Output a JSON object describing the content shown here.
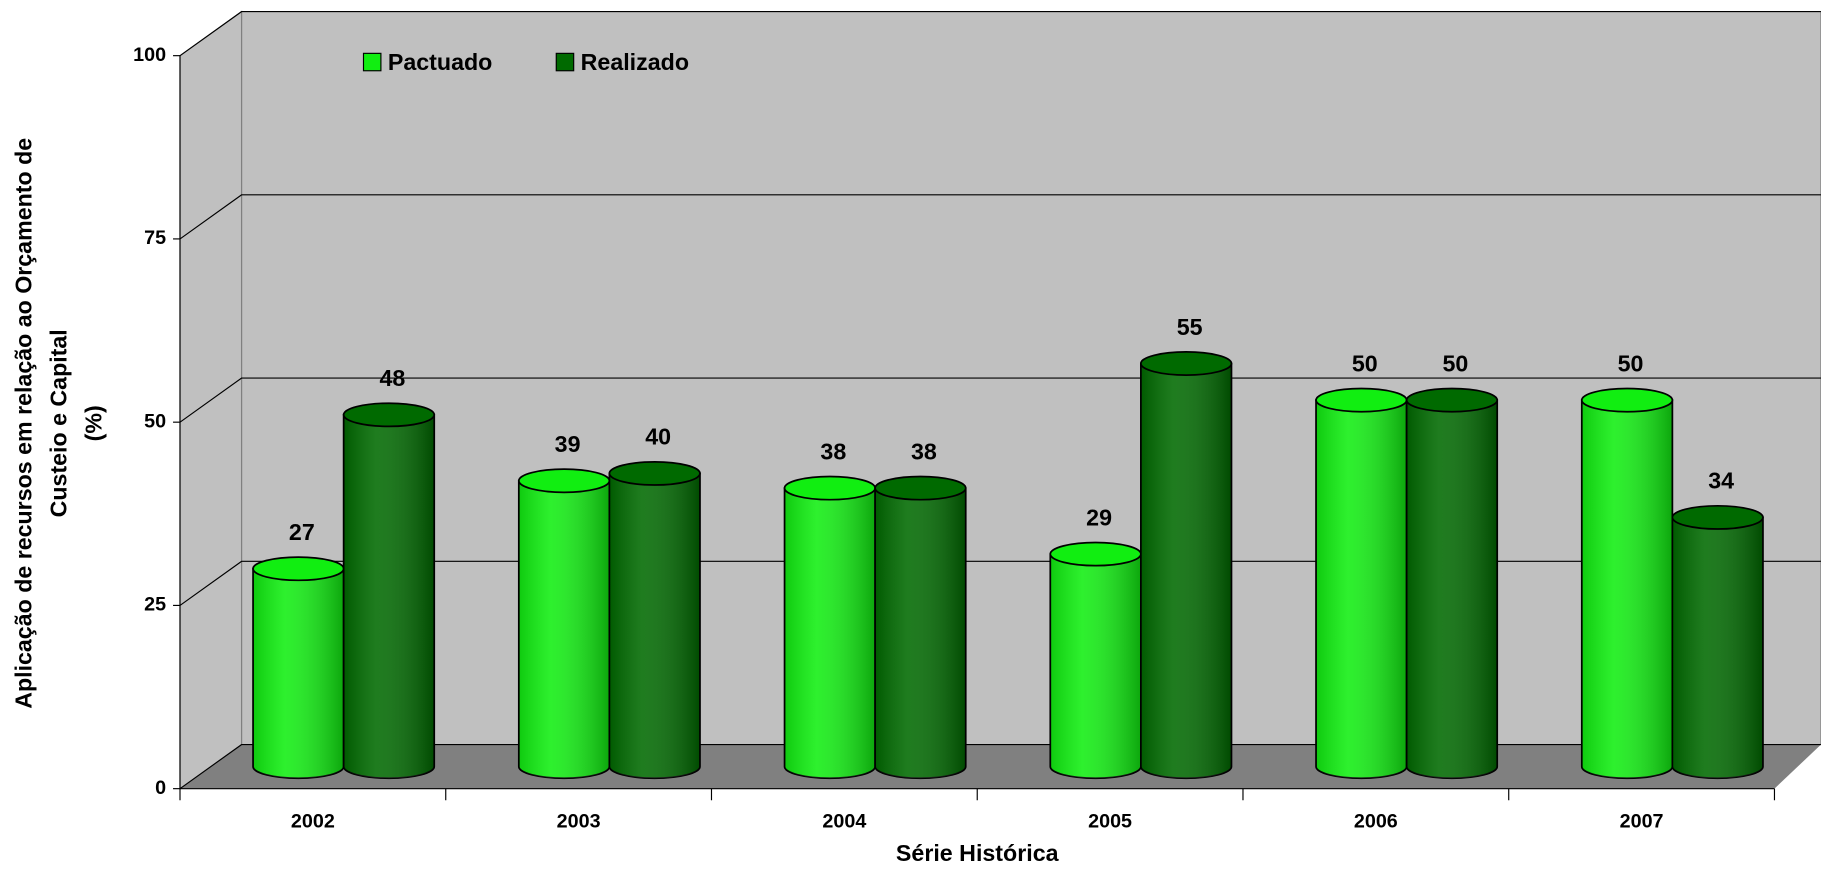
{
  "chart_data": {
    "type": "bar3d",
    "y_label": [
      "Aplicação de recursos em relação ao Orçamento de",
      "Custeio e Capital",
      "(%)"
    ],
    "x_label": "Série Histórica",
    "categories": [
      "2002",
      "2003",
      "2004",
      "2005",
      "2006",
      "2007"
    ],
    "series": [
      {
        "name": "Pactuado",
        "color": "#11ee11",
        "values": [
          27,
          39,
          38,
          29,
          50,
          50
        ]
      },
      {
        "name": "Realizado",
        "color": "#006a00",
        "values": [
          48,
          40,
          38,
          55,
          50,
          34
        ]
      }
    ],
    "ylim": [
      0,
      100
    ],
    "yticks": [
      0,
      25,
      50,
      75,
      100
    ],
    "grid": true,
    "legend": "top"
  }
}
